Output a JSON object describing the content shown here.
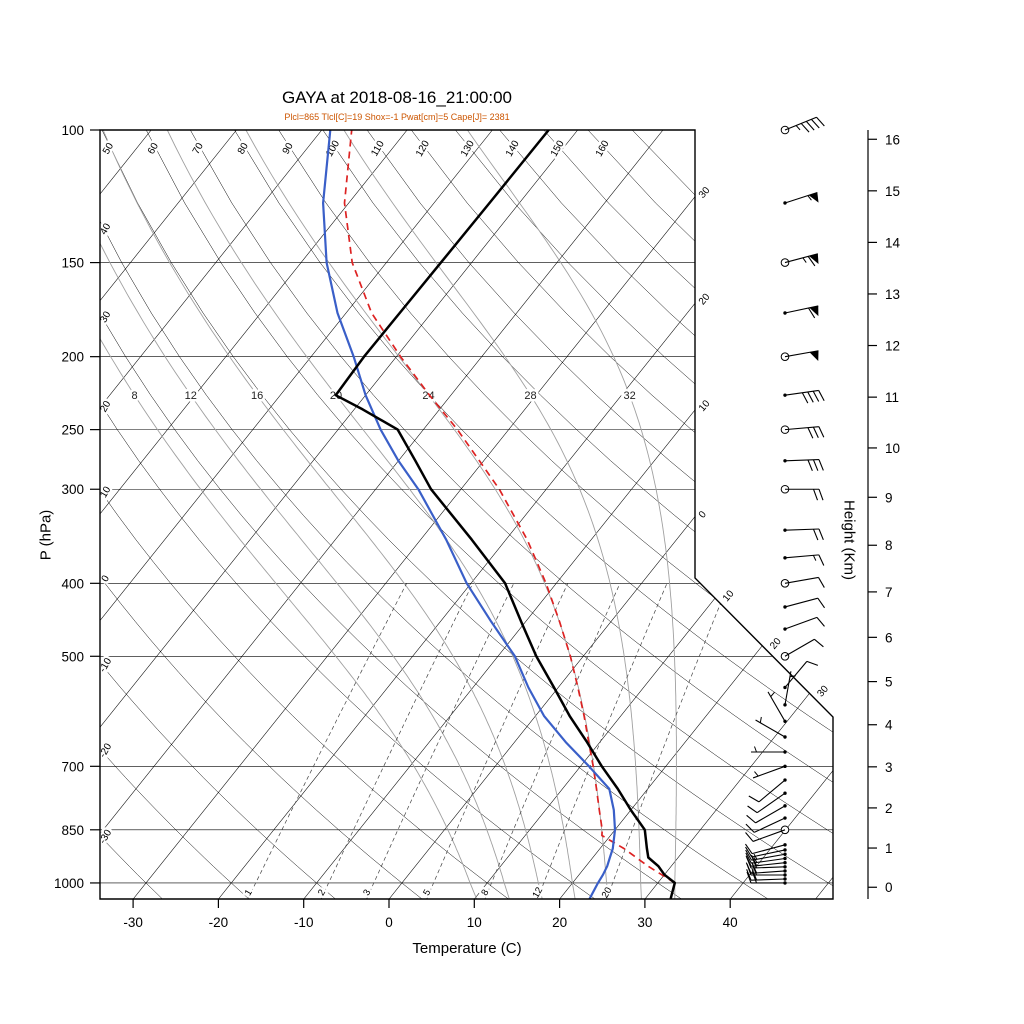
{
  "chart_data": {
    "type": "skewt-logp-sounding",
    "title": "GAYA at 2018-08-16_21:00:00",
    "subtitle": "Plcl=865 Tlcl[C]=19 Shox=-1 Pwat[cm]=5 Cape[J]= 2381",
    "xlabel": "Temperature (C)",
    "ylabel_left": "P (hPa)",
    "ylabel_right": "Height (Km)",
    "pressure_ticks": [
      100,
      150,
      200,
      250,
      300,
      400,
      500,
      700,
      850,
      1000
    ],
    "temperature_ticks": [
      -30,
      -20,
      -10,
      0,
      10,
      20,
      30,
      40
    ],
    "height_ticks_km": [
      0,
      1,
      2,
      3,
      4,
      5,
      6,
      7,
      8,
      9,
      10,
      11,
      12,
      13,
      14,
      15,
      16
    ],
    "isotherm_step": 10,
    "dry_adiabat_labels_top": [
      50,
      60,
      70,
      80,
      90,
      100,
      110,
      120,
      130,
      140,
      150,
      160
    ],
    "dry_adiabat_labels_left": [
      40,
      30,
      20,
      10,
      0,
      -10,
      -20,
      -30
    ],
    "isotherm_labels_right": [
      {
        "t": -30,
        "label": "30"
      },
      {
        "t": -20,
        "label": "20"
      },
      {
        "t": -10,
        "label": "10"
      },
      {
        "t": 0,
        "label": "0"
      }
    ],
    "isotherm_labels_diagonal": [
      {
        "t": 10,
        "label": "10"
      },
      {
        "t": 20,
        "label": "20"
      },
      {
        "t": 30,
        "label": "30"
      }
    ],
    "moist_adiabats": [
      8,
      12,
      16,
      20,
      24,
      28,
      32
    ],
    "mixing_ratios": [
      1,
      2,
      3,
      5,
      8,
      12,
      20
    ],
    "temperature_profile": [
      [
        1050,
        33
      ],
      [
        1000,
        32
      ],
      [
        975,
        30
      ],
      [
        950,
        28.5
      ],
      [
        925,
        26.5
      ],
      [
        900,
        25.5
      ],
      [
        850,
        23.5
      ],
      [
        800,
        20
      ],
      [
        750,
        16.5
      ],
      [
        700,
        12.5
      ],
      [
        650,
        8.5
      ],
      [
        600,
        4
      ],
      [
        550,
        -0.5
      ],
      [
        500,
        -5.5
      ],
      [
        450,
        -10.5
      ],
      [
        400,
        -16
      ],
      [
        350,
        -24
      ],
      [
        300,
        -33.5
      ],
      [
        275,
        -38
      ],
      [
        250,
        -43
      ],
      [
        235,
        -49
      ],
      [
        225,
        -53.5
      ],
      [
        200,
        -53.8
      ],
      [
        175,
        -53.7
      ],
      [
        150,
        -53.6
      ],
      [
        125,
        -53.5
      ],
      [
        100,
        -53.4
      ]
    ],
    "dewpoint_profile": [
      [
        1050,
        23.5
      ],
      [
        1000,
        23
      ],
      [
        975,
        22.8
      ],
      [
        950,
        22.5
      ],
      [
        925,
        22
      ],
      [
        900,
        21.5
      ],
      [
        850,
        20
      ],
      [
        800,
        18
      ],
      [
        750,
        15.5
      ],
      [
        700,
        11
      ],
      [
        650,
        6
      ],
      [
        600,
        1
      ],
      [
        550,
        -3.5
      ],
      [
        500,
        -8
      ],
      [
        450,
        -14
      ],
      [
        400,
        -20.5
      ],
      [
        350,
        -27
      ],
      [
        300,
        -35
      ],
      [
        275,
        -40
      ],
      [
        250,
        -45
      ],
      [
        225,
        -50
      ],
      [
        200,
        -55
      ],
      [
        175,
        -61
      ],
      [
        150,
        -67
      ],
      [
        125,
        -73
      ],
      [
        100,
        -79
      ]
    ],
    "parcel_profile": [
      [
        1000,
        32
      ],
      [
        950,
        27.3
      ],
      [
        900,
        22.8
      ],
      [
        865,
        19
      ],
      [
        850,
        18.5
      ],
      [
        800,
        16.3
      ],
      [
        750,
        14
      ],
      [
        700,
        11.5
      ],
      [
        650,
        8.7
      ],
      [
        600,
        5.7
      ],
      [
        550,
        2.3
      ],
      [
        500,
        -1.5
      ],
      [
        450,
        -6
      ],
      [
        400,
        -11.2
      ],
      [
        350,
        -17.5
      ],
      [
        300,
        -25.5
      ],
      [
        275,
        -30.5
      ],
      [
        250,
        -36
      ],
      [
        225,
        -42.5
      ],
      [
        200,
        -49.5
      ],
      [
        175,
        -57
      ],
      [
        150,
        -64
      ],
      [
        125,
        -70.5
      ],
      [
        100,
        -76.5
      ]
    ],
    "wind_barbs": [
      {
        "p": 1000,
        "dir": 270,
        "spd": 20,
        "mark": "dot"
      },
      {
        "p": 988,
        "dir": 268,
        "spd": 22,
        "mark": "dot"
      },
      {
        "p": 976,
        "dir": 270,
        "spd": 18,
        "mark": "dot"
      },
      {
        "p": 964,
        "dir": 266,
        "spd": 20,
        "mark": "dot"
      },
      {
        "p": 952,
        "dir": 268,
        "spd": 22,
        "mark": "dot"
      },
      {
        "p": 940,
        "dir": 264,
        "spd": 18,
        "mark": "dot"
      },
      {
        "p": 928,
        "dir": 262,
        "spd": 15,
        "mark": "dot"
      },
      {
        "p": 916,
        "dir": 260,
        "spd": 15,
        "mark": "dot"
      },
      {
        "p": 904,
        "dir": 258,
        "spd": 12,
        "mark": "dot"
      },
      {
        "p": 890,
        "dir": 255,
        "spd": 12,
        "mark": "dot"
      },
      {
        "p": 850,
        "dir": 250,
        "spd": 12,
        "mark": "circle"
      },
      {
        "p": 820,
        "dir": 245,
        "spd": 10,
        "mark": "dot"
      },
      {
        "p": 790,
        "dir": 240,
        "spd": 10,
        "mark": "dot"
      },
      {
        "p": 760,
        "dir": 235,
        "spd": 8,
        "mark": "dot"
      },
      {
        "p": 730,
        "dir": 230,
        "spd": 8,
        "mark": "dot"
      },
      {
        "p": 700,
        "dir": 250,
        "spd": 7,
        "mark": "dot"
      },
      {
        "p": 670,
        "dir": 270,
        "spd": 5,
        "mark": "dot"
      },
      {
        "p": 640,
        "dir": 300,
        "spd": 5,
        "mark": "dot"
      },
      {
        "p": 610,
        "dir": 330,
        "spd": 5,
        "mark": "dot"
      },
      {
        "p": 580,
        "dir": 10,
        "spd": 5,
        "mark": "dot"
      },
      {
        "p": 550,
        "dir": 40,
        "spd": 8,
        "mark": "dot"
      },
      {
        "p": 500,
        "dir": 60,
        "spd": 10,
        "mark": "circle"
      },
      {
        "p": 460,
        "dir": 70,
        "spd": 12,
        "mark": "dot"
      },
      {
        "p": 430,
        "dir": 75,
        "spd": 12,
        "mark": "dot"
      },
      {
        "p": 400,
        "dir": 80,
        "spd": 12,
        "mark": "circle"
      },
      {
        "p": 370,
        "dir": 85,
        "spd": 15,
        "mark": "dot"
      },
      {
        "p": 340,
        "dir": 88,
        "spd": 18,
        "mark": "dot"
      },
      {
        "p": 300,
        "dir": 90,
        "spd": 22,
        "mark": "circle"
      },
      {
        "p": 275,
        "dir": 88,
        "spd": 28,
        "mark": "dot"
      },
      {
        "p": 250,
        "dir": 85,
        "spd": 32,
        "mark": "circle"
      },
      {
        "p": 225,
        "dir": 82,
        "spd": 40,
        "mark": "dot"
      },
      {
        "p": 200,
        "dir": 80,
        "spd": 48,
        "mark": "circle"
      },
      {
        "p": 175,
        "dir": 78,
        "spd": 58,
        "mark": "dot"
      },
      {
        "p": 150,
        "dir": 75,
        "spd": 65,
        "mark": "circle"
      },
      {
        "p": 125,
        "dir": 72,
        "spd": 55,
        "mark": "dot"
      },
      {
        "p": 100,
        "dir": 68,
        "spd": 45,
        "mark": "circle"
      }
    ],
    "colors": {
      "temperature": "#000000",
      "dewpoint": "#3a5fc8",
      "parcel": "#dd2222",
      "moist_adiabat": "#a0a0a0",
      "mixing_ratio": "#444444",
      "background_lines": "#000000",
      "subtitle": "#cc5500"
    }
  }
}
